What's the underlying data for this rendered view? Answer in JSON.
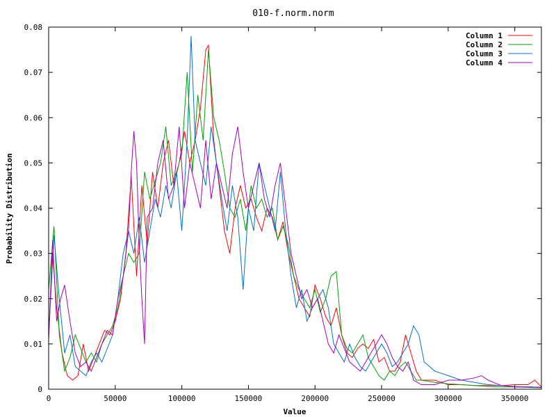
{
  "chart_data": {
    "type": "line",
    "title": "010-f.norm.norm",
    "xlabel": "Value",
    "ylabel": "Probability Distribution",
    "xlim": [
      0,
      370000
    ],
    "ylim": [
      0,
      0.08
    ],
    "xticks": [
      0,
      50000,
      100000,
      150000,
      200000,
      250000,
      300000,
      350000
    ],
    "yticks": [
      0,
      0.01,
      0.02,
      0.03,
      0.04,
      0.05,
      0.06,
      0.07,
      0.08
    ],
    "xtick_labels": [
      "0",
      "50000",
      "100000",
      "150000",
      "200000",
      "250000",
      "300000",
      "350000"
    ],
    "ytick_labels": [
      "0",
      "0.01",
      "0.02",
      "0.03",
      "0.04",
      "0.05",
      "0.06",
      "0.07",
      "0.08"
    ],
    "grid": false,
    "legend_position": "top-right",
    "series": [
      {
        "name": "Column 1",
        "color": "#ff0000",
        "x": [
          0,
          3000,
          6000,
          10000,
          14000,
          18000,
          22000,
          26000,
          30000,
          34000,
          38000,
          42000,
          46000,
          50000,
          54000,
          58000,
          62000,
          66000,
          70000,
          74000,
          78000,
          82000,
          86000,
          90000,
          94000,
          98000,
          102000,
          106000,
          110000,
          114000,
          118000,
          120000,
          124000,
          128000,
          132000,
          136000,
          140000,
          144000,
          148000,
          152000,
          156000,
          160000,
          164000,
          168000,
          172000,
          176000,
          180000,
          184000,
          188000,
          192000,
          196000,
          200000,
          204000,
          208000,
          212000,
          216000,
          220000,
          224000,
          228000,
          232000,
          236000,
          240000,
          244000,
          248000,
          252000,
          256000,
          260000,
          264000,
          268000,
          272000,
          276000,
          280000,
          290000,
          300000,
          310000,
          320000,
          330000,
          340000,
          350000,
          360000,
          365000,
          370000
        ],
        "y": [
          0.011,
          0.03,
          0.018,
          0.008,
          0.003,
          0.002,
          0.003,
          0.01,
          0.004,
          0.007,
          0.01,
          0.013,
          0.012,
          0.015,
          0.02,
          0.03,
          0.047,
          0.025,
          0.045,
          0.032,
          0.048,
          0.04,
          0.05,
          0.055,
          0.045,
          0.05,
          0.057,
          0.05,
          0.055,
          0.062,
          0.075,
          0.076,
          0.055,
          0.045,
          0.035,
          0.03,
          0.04,
          0.045,
          0.04,
          0.042,
          0.038,
          0.035,
          0.04,
          0.038,
          0.033,
          0.037,
          0.03,
          0.025,
          0.02,
          0.018,
          0.016,
          0.023,
          0.02,
          0.016,
          0.014,
          0.018,
          0.012,
          0.008,
          0.007,
          0.009,
          0.01,
          0.009,
          0.011,
          0.006,
          0.007,
          0.004,
          0.004,
          0.006,
          0.012,
          0.008,
          0.004,
          0.002,
          0.002,
          0.001,
          0.001,
          0.0008,
          0.0008,
          0.0008,
          0.001,
          0.001,
          0.002,
          0.0005
        ]
      },
      {
        "name": "Column 2",
        "color": "#00a000",
        "x": [
          0,
          4000,
          8000,
          12000,
          16000,
          20000,
          24000,
          28000,
          32000,
          36000,
          40000,
          44000,
          48000,
          52000,
          56000,
          60000,
          64000,
          68000,
          72000,
          76000,
          80000,
          84000,
          88000,
          92000,
          96000,
          100000,
          104000,
          108000,
          112000,
          116000,
          120000,
          124000,
          128000,
          132000,
          136000,
          140000,
          144000,
          148000,
          152000,
          156000,
          160000,
          164000,
          168000,
          172000,
          176000,
          180000,
          184000,
          188000,
          192000,
          196000,
          200000,
          204000,
          208000,
          212000,
          216000,
          220000,
          224000,
          228000,
          232000,
          236000,
          240000,
          244000,
          248000,
          252000,
          256000,
          260000,
          264000,
          268000,
          272000,
          276000,
          280000,
          290000,
          300000,
          310000,
          320000,
          330000,
          340000,
          350000,
          360000,
          370000
        ],
        "y": [
          0.022,
          0.036,
          0.012,
          0.004,
          0.007,
          0.012,
          0.009,
          0.006,
          0.008,
          0.006,
          0.01,
          0.012,
          0.014,
          0.018,
          0.025,
          0.03,
          0.028,
          0.03,
          0.048,
          0.042,
          0.046,
          0.05,
          0.058,
          0.045,
          0.048,
          0.052,
          0.07,
          0.048,
          0.065,
          0.055,
          0.075,
          0.06,
          0.055,
          0.048,
          0.04,
          0.038,
          0.042,
          0.035,
          0.045,
          0.04,
          0.042,
          0.038,
          0.04,
          0.033,
          0.036,
          0.032,
          0.025,
          0.022,
          0.02,
          0.018,
          0.022,
          0.017,
          0.02,
          0.025,
          0.026,
          0.012,
          0.009,
          0.008,
          0.01,
          0.012,
          0.007,
          0.005,
          0.003,
          0.002,
          0.004,
          0.003,
          0.005,
          0.006,
          0.004,
          0.002,
          0.002,
          0.0015,
          0.0012,
          0.001,
          0.0008,
          0.0006,
          0.0005,
          0.0005,
          0.0004,
          0.0003
        ]
      },
      {
        "name": "Column 3",
        "color": "#0070d0",
        "x": [
          0,
          4000,
          8000,
          12000,
          16000,
          20000,
          24000,
          28000,
          32000,
          36000,
          40000,
          44000,
          48000,
          52000,
          56000,
          60000,
          64000,
          68000,
          72000,
          76000,
          80000,
          84000,
          88000,
          92000,
          96000,
          100000,
          104000,
          107000,
          110000,
          114000,
          118000,
          122000,
          126000,
          130000,
          134000,
          138000,
          142000,
          146000,
          150000,
          154000,
          158000,
          162000,
          166000,
          170000,
          174000,
          178000,
          182000,
          186000,
          190000,
          194000,
          198000,
          202000,
          206000,
          210000,
          214000,
          218000,
          222000,
          226000,
          230000,
          234000,
          238000,
          242000,
          246000,
          250000,
          254000,
          258000,
          262000,
          266000,
          270000,
          274000,
          278000,
          282000,
          290000,
          300000,
          310000,
          320000,
          330000,
          340000,
          350000,
          360000,
          370000
        ],
        "y": [
          0.012,
          0.034,
          0.02,
          0.008,
          0.012,
          0.005,
          0.004,
          0.003,
          0.006,
          0.008,
          0.006,
          0.009,
          0.012,
          0.02,
          0.03,
          0.035,
          0.03,
          0.038,
          0.028,
          0.035,
          0.042,
          0.038,
          0.045,
          0.04,
          0.048,
          0.035,
          0.055,
          0.078,
          0.055,
          0.05,
          0.045,
          0.058,
          0.05,
          0.042,
          0.035,
          0.045,
          0.038,
          0.022,
          0.04,
          0.035,
          0.05,
          0.045,
          0.04,
          0.035,
          0.048,
          0.035,
          0.025,
          0.018,
          0.022,
          0.015,
          0.018,
          0.02,
          0.022,
          0.018,
          0.01,
          0.008,
          0.006,
          0.01,
          0.007,
          0.005,
          0.004,
          0.006,
          0.008,
          0.01,
          0.008,
          0.005,
          0.006,
          0.008,
          0.01,
          0.014,
          0.012,
          0.006,
          0.004,
          0.003,
          0.002,
          0.0015,
          0.001,
          0.0008,
          0.0006,
          0.0005,
          0.0004
        ]
      },
      {
        "name": "Column 4",
        "color": "#a000c0",
        "x": [
          0,
          3000,
          6000,
          9000,
          12000,
          16000,
          20000,
          24000,
          28000,
          32000,
          36000,
          40000,
          44000,
          48000,
          52000,
          56000,
          60000,
          62000,
          64000,
          66000,
          68000,
          70000,
          72000,
          74000,
          78000,
          82000,
          86000,
          90000,
          94000,
          98000,
          102000,
          106000,
          110000,
          114000,
          118000,
          122000,
          126000,
          130000,
          134000,
          138000,
          142000,
          146000,
          150000,
          154000,
          158000,
          162000,
          166000,
          170000,
          174000,
          178000,
          182000,
          186000,
          190000,
          194000,
          198000,
          202000,
          206000,
          210000,
          214000,
          218000,
          222000,
          226000,
          230000,
          234000,
          238000,
          242000,
          246000,
          250000,
          254000,
          258000,
          262000,
          266000,
          270000,
          274000,
          280000,
          290000,
          300000,
          310000,
          320000,
          325000,
          330000,
          340000,
          350000,
          360000,
          370000
        ],
        "y": [
          0.011,
          0.033,
          0.015,
          0.02,
          0.023,
          0.015,
          0.008,
          0.005,
          0.006,
          0.004,
          0.007,
          0.01,
          0.013,
          0.012,
          0.02,
          0.025,
          0.035,
          0.048,
          0.057,
          0.05,
          0.032,
          0.02,
          0.01,
          0.038,
          0.04,
          0.05,
          0.055,
          0.042,
          0.045,
          0.058,
          0.04,
          0.05,
          0.045,
          0.04,
          0.055,
          0.042,
          0.05,
          0.045,
          0.04,
          0.052,
          0.058,
          0.048,
          0.04,
          0.045,
          0.05,
          0.042,
          0.038,
          0.045,
          0.05,
          0.04,
          0.03,
          0.025,
          0.02,
          0.022,
          0.018,
          0.02,
          0.015,
          0.01,
          0.008,
          0.012,
          0.009,
          0.006,
          0.005,
          0.004,
          0.006,
          0.008,
          0.01,
          0.012,
          0.01,
          0.007,
          0.005,
          0.004,
          0.006,
          0.002,
          0.001,
          0.001,
          0.002,
          0.002,
          0.0025,
          0.003,
          0.002,
          0.0008,
          0.0005,
          0.0005,
          0.0004
        ]
      }
    ]
  }
}
